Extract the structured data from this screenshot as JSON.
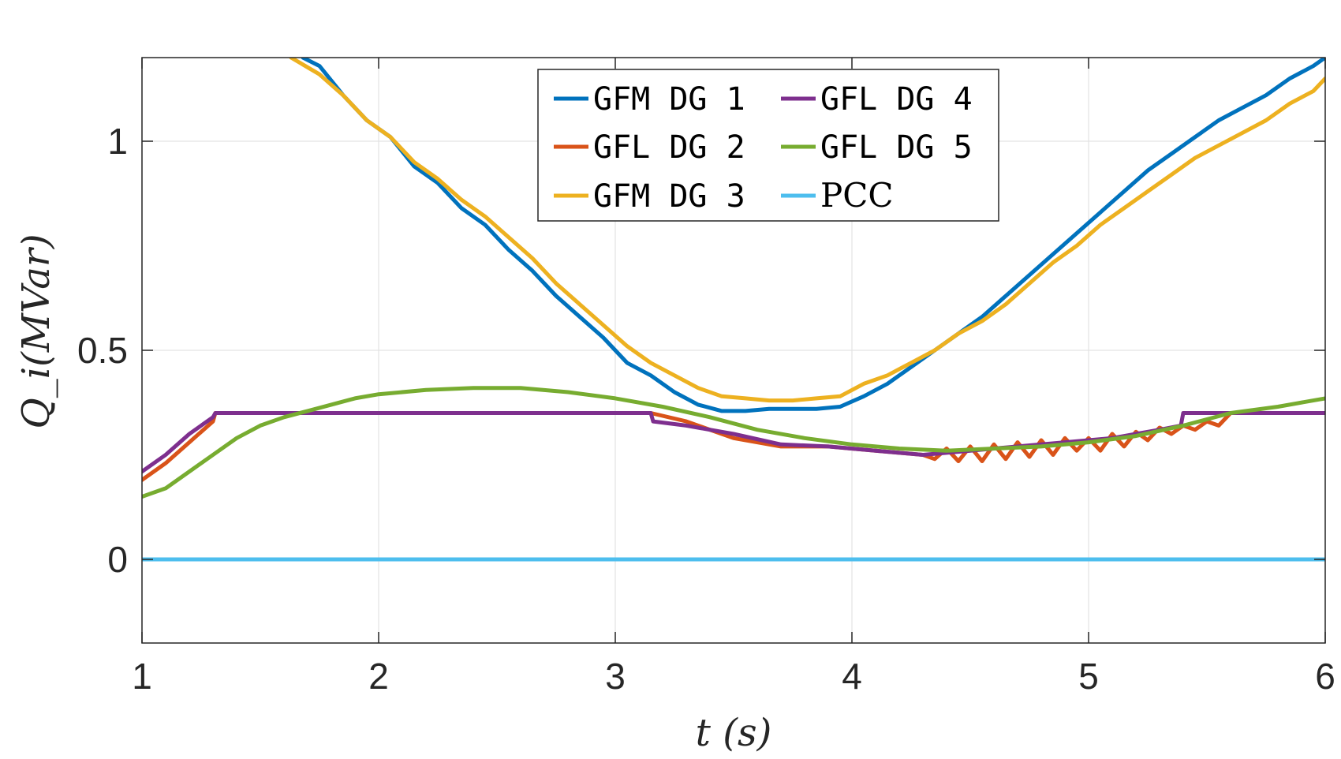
{
  "chart_data": {
    "type": "line",
    "title": "",
    "xlabel": "t (s)",
    "ylabel": "Q_i(MVar)",
    "xlim": [
      1,
      6
    ],
    "ylim": [
      -0.2,
      1.2
    ],
    "xticks": [
      1,
      2,
      3,
      4,
      5,
      6
    ],
    "yticks": [
      0,
      0.5,
      1
    ],
    "ytick_labels": [
      "0",
      "0.5",
      "1"
    ],
    "grid": true,
    "legend_position": "top-center",
    "series": [
      {
        "name": "GFM DG 1",
        "color": "#0072BD",
        "x": [
          1.68,
          1.75,
          1.85,
          1.95,
          2.05,
          2.15,
          2.25,
          2.35,
          2.45,
          2.55,
          2.65,
          2.75,
          2.85,
          2.95,
          3.05,
          3.15,
          3.25,
          3.35,
          3.45,
          3.55,
          3.65,
          3.75,
          3.85,
          3.95,
          4.05,
          4.15,
          4.25,
          4.35,
          4.45,
          4.55,
          4.65,
          4.75,
          4.85,
          4.95,
          5.05,
          5.15,
          5.25,
          5.35,
          5.45,
          5.55,
          5.65,
          5.75,
          5.85,
          5.95,
          6.0
        ],
        "y": [
          1.2,
          1.18,
          1.11,
          1.05,
          1.01,
          0.94,
          0.9,
          0.84,
          0.8,
          0.74,
          0.69,
          0.63,
          0.58,
          0.53,
          0.47,
          0.44,
          0.4,
          0.37,
          0.355,
          0.355,
          0.36,
          0.36,
          0.36,
          0.365,
          0.39,
          0.42,
          0.46,
          0.5,
          0.54,
          0.58,
          0.63,
          0.68,
          0.73,
          0.78,
          0.83,
          0.88,
          0.93,
          0.97,
          1.01,
          1.05,
          1.08,
          1.11,
          1.15,
          1.18,
          1.2
        ]
      },
      {
        "name": "GFL DG 2",
        "color": "#D95319",
        "x": [
          1.0,
          1.1,
          1.2,
          1.3,
          1.31,
          1.5,
          2.0,
          2.5,
          3.0,
          3.15,
          3.3,
          3.5,
          3.7,
          3.9,
          4.1,
          4.2,
          4.3,
          4.35,
          4.4,
          4.45,
          4.5,
          4.55,
          4.6,
          4.65,
          4.7,
          4.75,
          4.8,
          4.85,
          4.9,
          4.95,
          5.0,
          5.05,
          5.1,
          5.15,
          5.2,
          5.25,
          5.3,
          5.35,
          5.4,
          5.45,
          5.5,
          5.55,
          5.6,
          5.8,
          6.0
        ],
        "y": [
          0.19,
          0.23,
          0.28,
          0.33,
          0.35,
          0.35,
          0.35,
          0.35,
          0.35,
          0.35,
          0.33,
          0.29,
          0.27,
          0.27,
          0.26,
          0.255,
          0.25,
          0.24,
          0.265,
          0.235,
          0.27,
          0.235,
          0.275,
          0.24,
          0.28,
          0.245,
          0.285,
          0.25,
          0.29,
          0.26,
          0.29,
          0.26,
          0.3,
          0.27,
          0.305,
          0.285,
          0.315,
          0.3,
          0.32,
          0.31,
          0.33,
          0.32,
          0.35,
          0.35,
          0.35
        ]
      },
      {
        "name": "GFM DG 3",
        "color": "#EDB120",
        "x": [
          1.63,
          1.75,
          1.85,
          1.95,
          2.05,
          2.15,
          2.25,
          2.35,
          2.45,
          2.55,
          2.65,
          2.75,
          2.85,
          2.95,
          3.05,
          3.15,
          3.25,
          3.35,
          3.45,
          3.55,
          3.65,
          3.75,
          3.85,
          3.95,
          4.05,
          4.15,
          4.25,
          4.35,
          4.45,
          4.55,
          4.65,
          4.75,
          4.85,
          4.95,
          5.05,
          5.15,
          5.25,
          5.35,
          5.45,
          5.55,
          5.65,
          5.75,
          5.85,
          5.95,
          6.0
        ],
        "y": [
          1.2,
          1.16,
          1.11,
          1.05,
          1.01,
          0.95,
          0.91,
          0.86,
          0.82,
          0.77,
          0.72,
          0.66,
          0.61,
          0.56,
          0.51,
          0.47,
          0.44,
          0.41,
          0.39,
          0.385,
          0.38,
          0.38,
          0.385,
          0.39,
          0.42,
          0.44,
          0.47,
          0.5,
          0.54,
          0.57,
          0.61,
          0.66,
          0.71,
          0.75,
          0.8,
          0.84,
          0.88,
          0.92,
          0.96,
          0.99,
          1.02,
          1.05,
          1.09,
          1.12,
          1.15
        ]
      },
      {
        "name": "GFL DG 4",
        "color": "#7E2F8E",
        "x": [
          1.0,
          1.1,
          1.2,
          1.3,
          1.31,
          1.5,
          2.0,
          2.5,
          3.0,
          3.15,
          3.16,
          3.3,
          3.5,
          3.7,
          3.9,
          4.1,
          4.2,
          4.3,
          4.4,
          4.5,
          4.6,
          4.7,
          4.8,
          4.9,
          5.0,
          5.1,
          5.2,
          5.3,
          5.39,
          5.4,
          5.6,
          5.8,
          6.0
        ],
        "y": [
          0.21,
          0.25,
          0.3,
          0.34,
          0.35,
          0.35,
          0.35,
          0.35,
          0.35,
          0.35,
          0.33,
          0.32,
          0.3,
          0.275,
          0.27,
          0.26,
          0.255,
          0.25,
          0.255,
          0.26,
          0.265,
          0.27,
          0.275,
          0.28,
          0.285,
          0.29,
          0.3,
          0.31,
          0.32,
          0.35,
          0.35,
          0.35,
          0.35
        ]
      },
      {
        "name": "GFL DG 5",
        "color": "#77AC30",
        "x": [
          1.0,
          1.1,
          1.2,
          1.3,
          1.4,
          1.5,
          1.6,
          1.7,
          1.8,
          1.9,
          2.0,
          2.2,
          2.4,
          2.6,
          2.8,
          3.0,
          3.2,
          3.4,
          3.6,
          3.8,
          4.0,
          4.2,
          4.4,
          4.6,
          4.8,
          5.0,
          5.2,
          5.4,
          5.6,
          5.8,
          6.0
        ],
        "y": [
          0.15,
          0.17,
          0.21,
          0.25,
          0.29,
          0.32,
          0.34,
          0.355,
          0.37,
          0.385,
          0.395,
          0.405,
          0.41,
          0.41,
          0.4,
          0.385,
          0.365,
          0.34,
          0.31,
          0.29,
          0.275,
          0.265,
          0.26,
          0.265,
          0.27,
          0.28,
          0.295,
          0.32,
          0.35,
          0.365,
          0.385
        ]
      },
      {
        "name": "PCC",
        "color": "#4DBEEE",
        "x": [
          1.0,
          6.0
        ],
        "y": [
          0.0,
          0.0
        ]
      }
    ]
  }
}
